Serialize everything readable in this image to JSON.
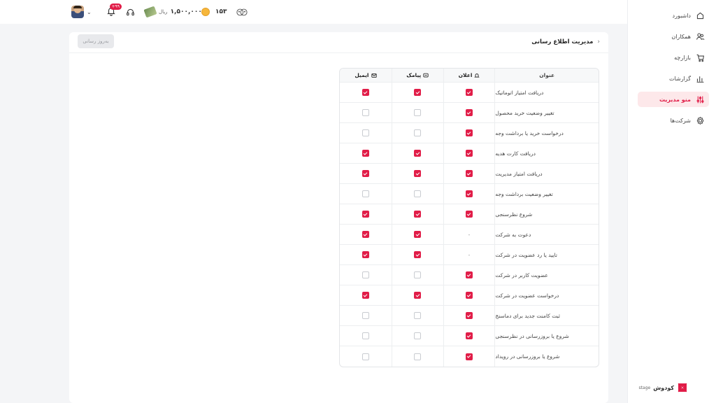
{
  "topbar": {
    "badge_count": "+۹۹",
    "balance": "۱,۵۰۰,۰۰۰",
    "currency": "ریال",
    "coins": "۱۵۳"
  },
  "sidebar": {
    "items": [
      {
        "label": "داشبورد",
        "icon": "home-icon",
        "active": false
      },
      {
        "label": "همکاران",
        "icon": "users-icon",
        "active": false
      },
      {
        "label": "بازارچه",
        "icon": "cart-icon",
        "active": false
      },
      {
        "label": "گزارشات",
        "icon": "chart-icon",
        "active": false
      },
      {
        "label": "منو مدیریت",
        "icon": "sliders-icon",
        "active": true
      },
      {
        "label": "شرکت‌ها",
        "icon": "gear-icon",
        "active": false
      }
    ],
    "logo_text": "کودوش",
    "logo_sub": "stage"
  },
  "page": {
    "title": "مدیریت اطلاع رسانی",
    "update_button": "به‌روز رسانی"
  },
  "table": {
    "headers": {
      "title": "عنوان",
      "notification": "اعلان",
      "sms": "پیامک",
      "email": "ایمیل"
    },
    "rows": [
      {
        "title": "دریافت امتیاز اتوماتیک",
        "notification": true,
        "sms": true,
        "email": true
      },
      {
        "title": "تغییر وضعیت خرید محصول",
        "notification": true,
        "sms": false,
        "email": false
      },
      {
        "title": "درخواست خرید یا برداشت وجه",
        "notification": true,
        "sms": false,
        "email": false
      },
      {
        "title": "دریافت کارت هدیه",
        "notification": true,
        "sms": true,
        "email": true
      },
      {
        "title": "دریافت امتیاز مدیریت",
        "notification": true,
        "sms": true,
        "email": true
      },
      {
        "title": "تغییر وضعیت برداشت وجه",
        "notification": true,
        "sms": false,
        "email": false
      },
      {
        "title": "شروع نظرسنجی",
        "notification": true,
        "sms": true,
        "email": true
      },
      {
        "title": "دعوت به شرکت",
        "notification": "-",
        "sms": true,
        "email": true
      },
      {
        "title": "تایید یا رد عضویت در شرکت",
        "notification": "-",
        "sms": true,
        "email": true
      },
      {
        "title": "عضویت کاربر در شرکت",
        "notification": true,
        "sms": false,
        "email": false
      },
      {
        "title": "درخواست عضویت در شرکت",
        "notification": true,
        "sms": true,
        "email": true
      },
      {
        "title": "ثبت کامنت جدید برای دماسنج",
        "notification": true,
        "sms": false,
        "email": false
      },
      {
        "title": "شروع یا بروزرسانی در نظرسنجی",
        "notification": true,
        "sms": false,
        "email": false
      },
      {
        "title": "شروع یا بروزرسانی در رویداد",
        "notification": true,
        "sms": false,
        "email": false
      }
    ]
  },
  "colors": {
    "accent": "#e11d48",
    "active_bg": "#fde8ea"
  }
}
